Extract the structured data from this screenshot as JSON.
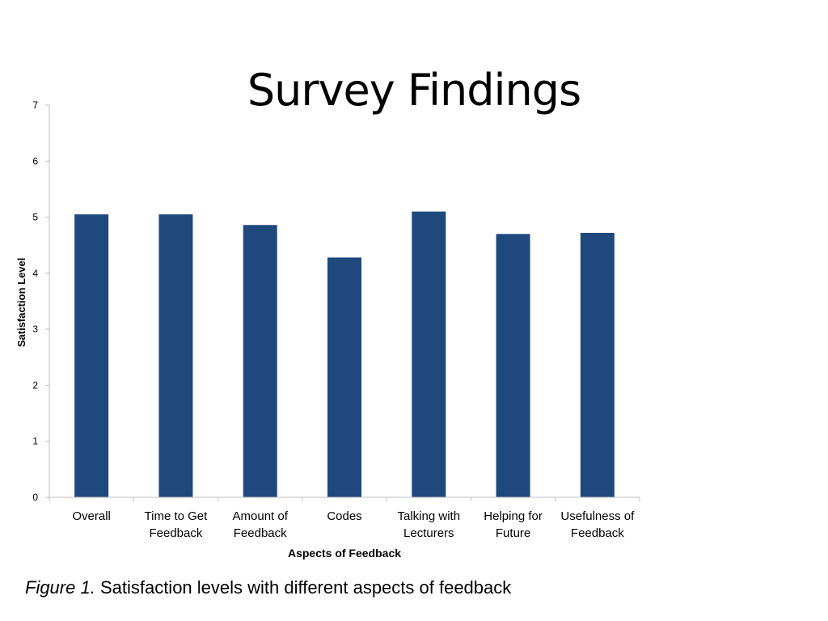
{
  "slide": {
    "title": "Survey Findings",
    "caption_label": "Figure 1.",
    "caption_text": " Satisfaction levels with different aspects of feedback"
  },
  "chart_data": {
    "type": "bar",
    "title": "",
    "xlabel": "Aspects of Feedback",
    "ylabel": "Satisfaction Level",
    "categories": [
      [
        "Overall"
      ],
      [
        "Time to Get",
        "Feedback"
      ],
      [
        "Amount of",
        "Feedback"
      ],
      [
        "Codes"
      ],
      [
        "Talking with",
        "Lecturers"
      ],
      [
        "Helping for",
        "Future"
      ],
      [
        "Usefulness of",
        "Feedback"
      ]
    ],
    "values": [
      5.05,
      5.05,
      4.86,
      4.28,
      5.1,
      4.7,
      4.72
    ],
    "ylim": [
      0,
      7
    ],
    "yticks": [
      0,
      1,
      2,
      3,
      4,
      5,
      6,
      7
    ],
    "grid": false,
    "legend": "none",
    "colors": {
      "bar": "#1f497d",
      "axis": "#bfbfbf",
      "text": "#000000"
    }
  }
}
